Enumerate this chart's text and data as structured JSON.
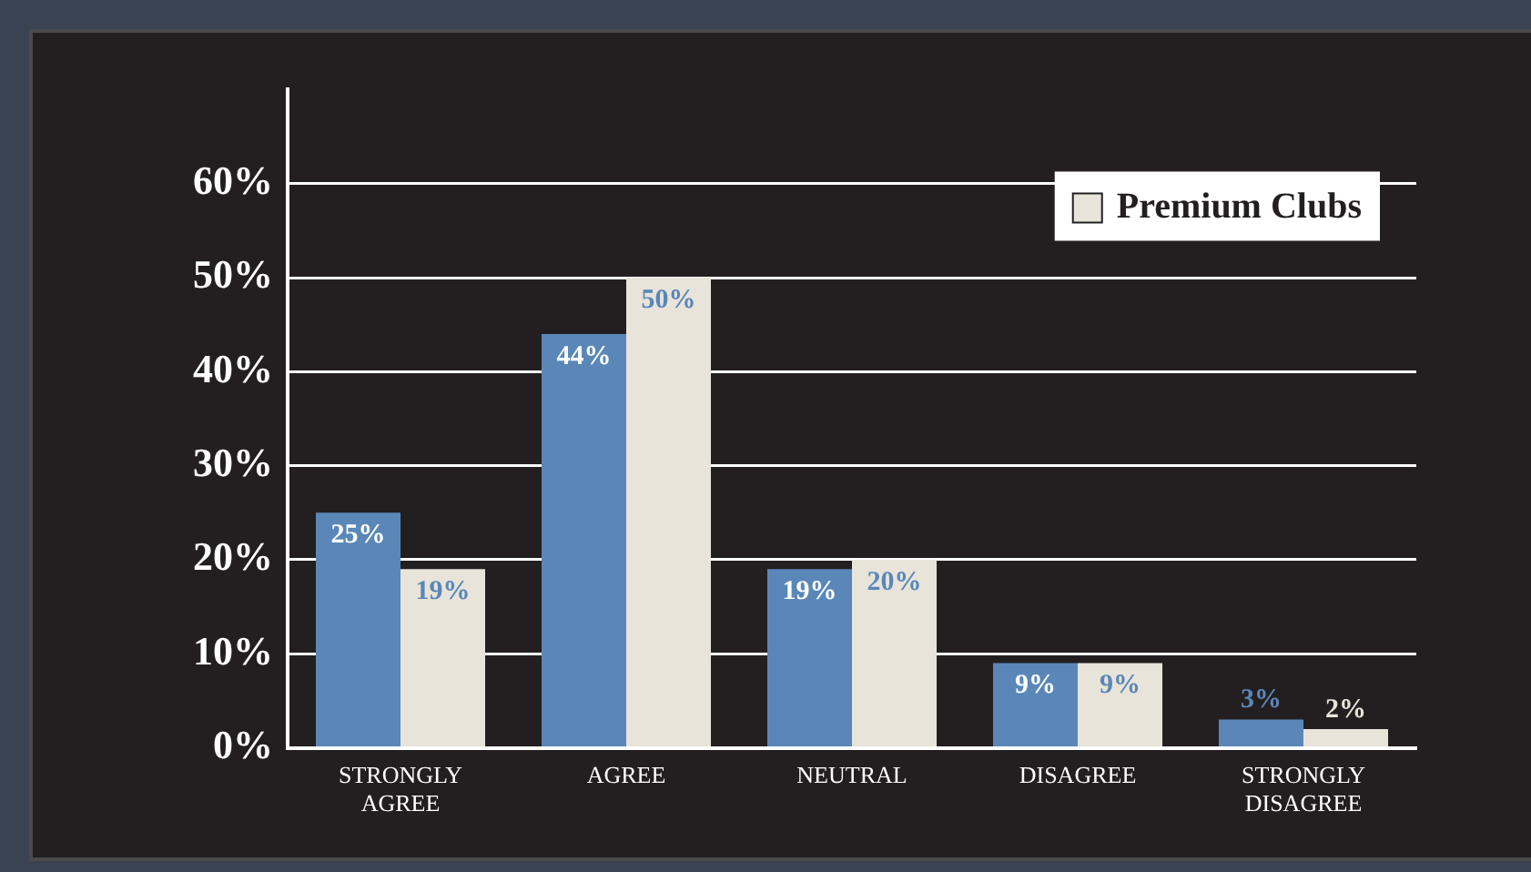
{
  "chart_data": {
    "type": "bar",
    "categories": [
      "STRONGLY AGREE",
      "AGREE",
      "NEUTRAL",
      "DISAGREE",
      "STRONGLY DISAGREE"
    ],
    "series": [
      {
        "color": "#5a87b8",
        "values": [
          25,
          44,
          19,
          9,
          3
        ],
        "value_labels": [
          "25%",
          "44%",
          "19%",
          "9%",
          "3%"
        ]
      },
      {
        "name": "Premium Clubs",
        "color": "#e8e4da",
        "values": [
          19,
          50,
          20,
          9,
          2
        ],
        "value_labels": [
          "19%",
          "50%",
          "20%",
          "9%",
          "2%"
        ]
      }
    ],
    "ylim": [
      0,
      70
    ],
    "yticks": [
      {
        "value": 0,
        "label": "0%"
      },
      {
        "value": 10,
        "label": "10%"
      },
      {
        "value": 20,
        "label": "20%"
      },
      {
        "value": 30,
        "label": "30%"
      },
      {
        "value": 40,
        "label": "40%"
      },
      {
        "value": 50,
        "label": "50%"
      },
      {
        "value": 60,
        "label": "60%"
      }
    ],
    "grid": "y",
    "legend": "top right"
  }
}
